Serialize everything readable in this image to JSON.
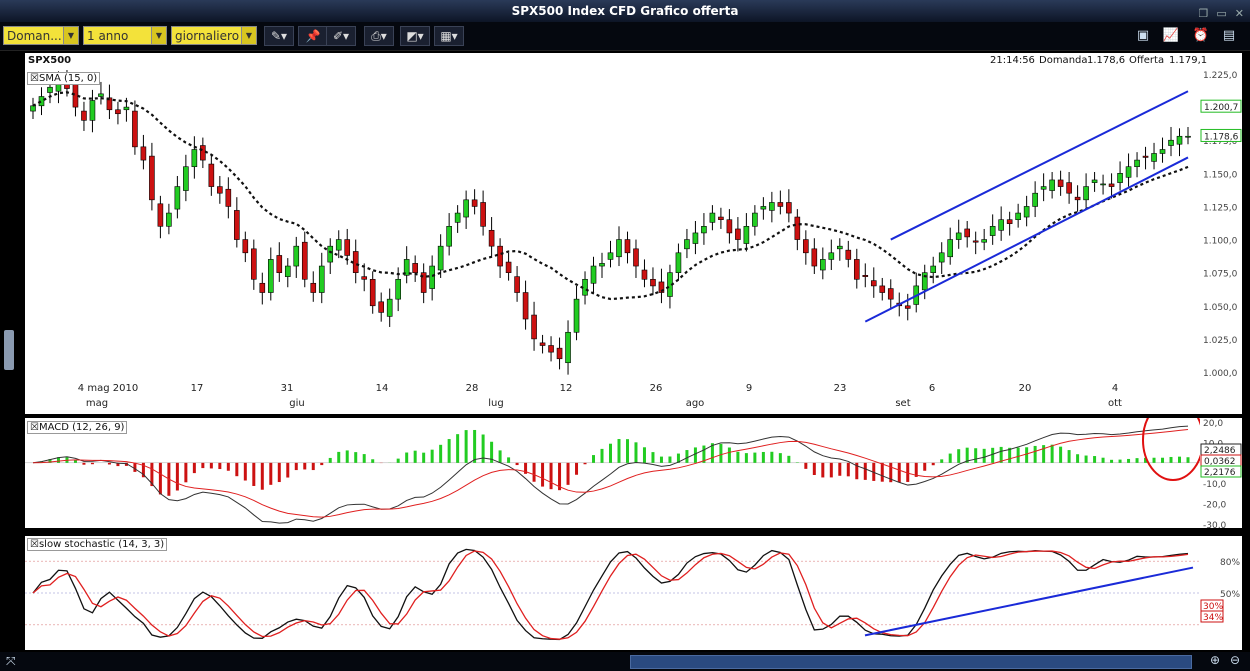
{
  "window": {
    "title": "SPX500 Index CFD Grafico offerta"
  },
  "toolbar": {
    "dd1": "Doman...",
    "dd2": "1 anno",
    "dd3": "giornaliero",
    "icons": [
      "pen-icon",
      "pin-icon",
      "draw-tools-icon",
      "print-icon",
      "chart-type-icon",
      "grid-icon"
    ],
    "right_icons": [
      "layout-icon",
      "line-chart-icon",
      "alert-icon",
      "notes-icon"
    ]
  },
  "header": {
    "symbol": "SPX500",
    "time": "21:14:56",
    "bid_label": "Domanda",
    "bid": "1.178,6",
    "ask_label": "Offerta",
    "ask": "1.179,1"
  },
  "colors": {
    "up": "#22cc22",
    "down": "#cc1111",
    "channel": "#1a2ad8",
    "sma": "#111111",
    "signal": "#e02020"
  },
  "chart_data": [
    {
      "type": "candlestick",
      "title": "SMA (15, 0)",
      "ylim": [
        1000,
        1225
      ],
      "yticks": [
        "1.225,0",
        "1.200,0",
        "1.175,0",
        "1.150,0",
        "1.125,0",
        "1.100,0",
        "1.075,0",
        "1.050,0",
        "1.025,0",
        "1.000,0"
      ],
      "xticks": [
        "4 mag 2010",
        "17",
        "31",
        "14",
        "28",
        "12",
        "26",
        "9",
        "23",
        "6",
        "20",
        "4"
      ],
      "months": [
        "mag",
        "giu",
        "lug",
        "ago",
        "set",
        "ott"
      ],
      "close_series": [
        1201,
        1208,
        1215,
        1218,
        1214,
        1200,
        1190,
        1205,
        1210,
        1198,
        1195,
        1200,
        1170,
        1160,
        1130,
        1110,
        1120,
        1140,
        1155,
        1168,
        1160,
        1140,
        1135,
        1125,
        1100,
        1090,
        1070,
        1060,
        1085,
        1075,
        1080,
        1095,
        1070,
        1060,
        1080,
        1095,
        1100,
        1088,
        1075,
        1070,
        1050,
        1045,
        1055,
        1070,
        1085,
        1075,
        1060,
        1080,
        1095,
        1110,
        1120,
        1130,
        1125,
        1110,
        1095,
        1080,
        1075,
        1060,
        1040,
        1025,
        1020,
        1015,
        1010,
        1030,
        1055,
        1070,
        1080,
        1082,
        1090,
        1100,
        1090,
        1080,
        1070,
        1065,
        1060,
        1075,
        1090,
        1100,
        1105,
        1110,
        1120,
        1115,
        1105,
        1100,
        1110,
        1120,
        1125,
        1128,
        1125,
        1120,
        1100,
        1090,
        1080,
        1085,
        1090,
        1095,
        1085,
        1070,
        1072,
        1065,
        1060,
        1055,
        1050,
        1048,
        1065,
        1075,
        1080,
        1090,
        1100,
        1105,
        1102,
        1098,
        1100,
        1110,
        1115,
        1112,
        1120,
        1125,
        1135,
        1140,
        1145,
        1140,
        1135,
        1130,
        1140,
        1145,
        1142,
        1140,
        1150,
        1155,
        1160,
        1162,
        1165,
        1168,
        1175,
        1178,
        1178
      ],
      "sma_label": "SMA (15, 0)",
      "last_tags": [
        {
          "label": "1.200,7",
          "color": "#22bb22"
        },
        {
          "label": "1.178,6",
          "color": "#22bb22"
        }
      ]
    },
    {
      "type": "bar+line",
      "title": "MACD (12, 26, 9)",
      "ylim": [
        -30,
        20
      ],
      "yticks": [
        "20,0",
        "10,0",
        "0,0",
        "-10,0",
        "-20,0",
        "-30,0"
      ],
      "tags": [
        {
          "label": "2,2486",
          "color": "#222222"
        },
        {
          "label": "0,0362",
          "color": "#cc1111"
        },
        {
          "label": "2,2176",
          "color": "#22bb22"
        }
      ]
    },
    {
      "type": "line",
      "title": "slow stochastic (14, 3, 3)",
      "ylim": [
        0,
        100
      ],
      "yticks": [
        "80%",
        "50%"
      ],
      "tags": [
        {
          "label": "30%",
          "color": "#cc1111"
        },
        {
          "label": "34%",
          "color": "#cc1111"
        }
      ]
    }
  ]
}
